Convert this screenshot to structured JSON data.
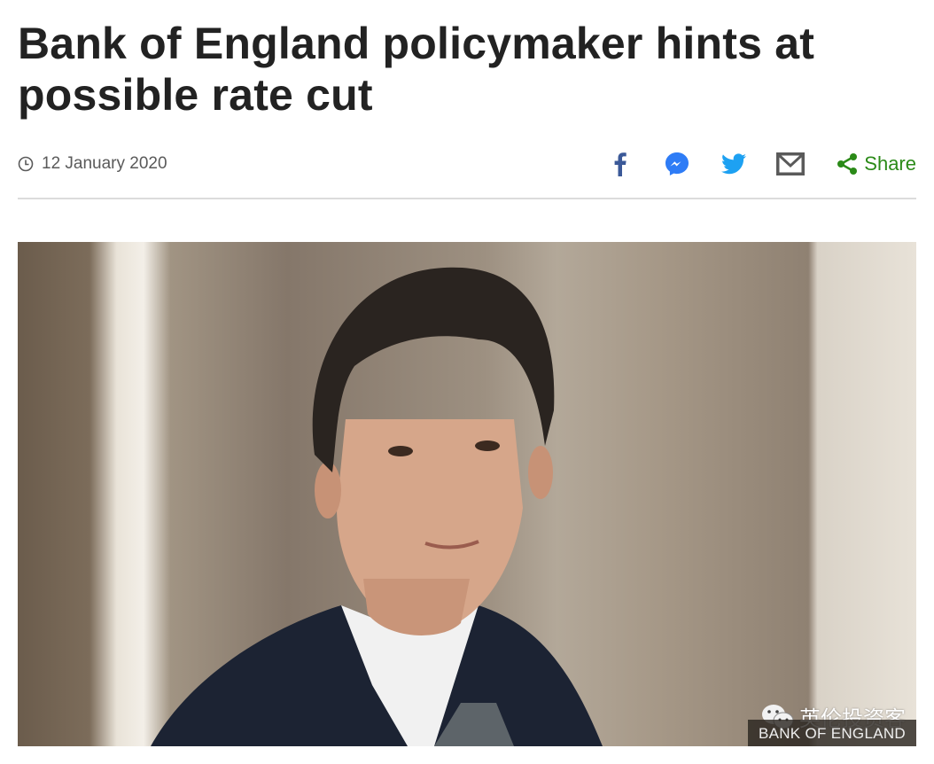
{
  "article": {
    "headline": "Bank of England policymaker hints at possible rate cut",
    "date": "12 January 2020"
  },
  "share": {
    "icons": [
      "facebook-icon",
      "messenger-icon",
      "twitter-icon",
      "email-icon"
    ],
    "share_label": "Share",
    "colors": {
      "facebook": "#3b5998",
      "messenger": "#2e7cf6",
      "twitter": "#1da1f2",
      "email": "#5a5a5a",
      "share": "#2b8a18"
    }
  },
  "image": {
    "caption": "BANK OF ENGLAND",
    "watermark": "英伦投资客"
  }
}
